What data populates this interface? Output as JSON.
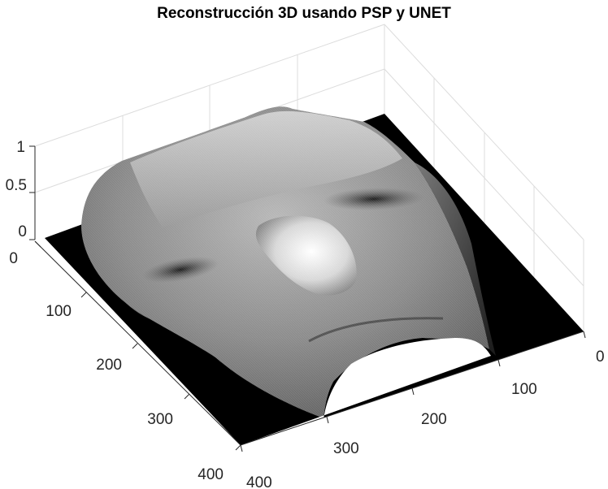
{
  "chart_data": {
    "type": "surface",
    "title": "Reconstrucción 3D usando PSP y UNET",
    "xlabel": "",
    "ylabel": "",
    "zlabel": "",
    "x_ticks": [
      "0",
      "100",
      "200",
      "300",
      "400"
    ],
    "y_ticks": [
      "0",
      "100",
      "200",
      "300",
      "400"
    ],
    "z_ticks": [
      "0",
      "0.5",
      "1"
    ],
    "xlim": [
      0,
      400
    ],
    "ylim": [
      0,
      400
    ],
    "zlim": [
      0,
      1
    ],
    "grid": true,
    "colormap": "gray",
    "colors": {
      "background": "#ffffff",
      "floor": "#000000",
      "surface_dark": "#6e6e6e",
      "surface_light": "#f5f5f5",
      "grid": "#dcdcdc",
      "axis": "#262626"
    }
  }
}
